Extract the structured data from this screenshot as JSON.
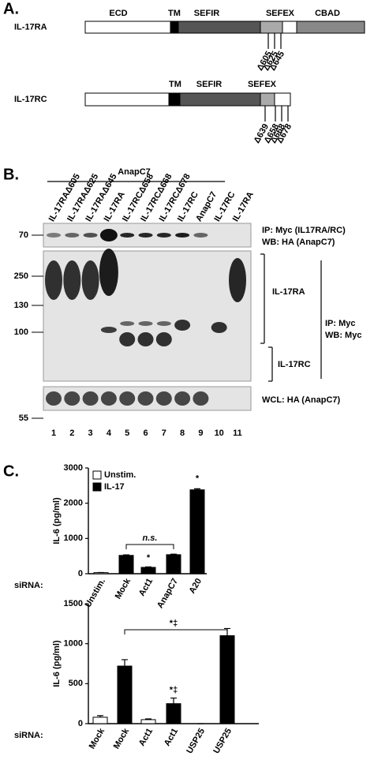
{
  "panel_a": {
    "label": "A.",
    "proteins": [
      {
        "name": "IL-17RA",
        "domains": [
          "ECD",
          "TM",
          "SEFIR",
          "SEFEX",
          "CBAD"
        ],
        "deletions": [
          "Δ605",
          "Δ625",
          "Δ645"
        ]
      },
      {
        "name": "IL-17RC",
        "domains": [
          "TM",
          "SEFIR",
          "SEFEX"
        ],
        "deletions": [
          "Δ639",
          "Δ658",
          "Δ668",
          "Δ678"
        ]
      }
    ]
  },
  "panel_b": {
    "label": "B.",
    "group": "AnapC7",
    "lanes": [
      "IL-17RAΔ605",
      "IL-17RAΔ625",
      "IL-17RAΔ645",
      "IL-17RA",
      "IL-17RCΔ658",
      "IL-17RCΔ668",
      "IL-17RCΔ678",
      "IL-17RC",
      "AnapC7",
      "IL-17RC",
      "IL-17RA"
    ],
    "lane_numbers": [
      1,
      2,
      3,
      4,
      5,
      6,
      7,
      8,
      9,
      10,
      11
    ],
    "blots": [
      {
        "markers": [
          70
        ],
        "caption": [
          "IP: Myc (IL17RA/RC)",
          "WB: HA (AnapC7)"
        ]
      },
      {
        "markers": [
          250,
          130,
          100
        ],
        "brackets": [
          "IL-17RA",
          "IL-17RC"
        ],
        "caption": [
          "IP: Myc",
          "WB: Myc"
        ]
      },
      {
        "markers": [
          55
        ],
        "caption": [
          "WCL: HA (AnapC7)"
        ]
      }
    ]
  },
  "panel_c": {
    "label": "C."
  },
  "chart_data": [
    {
      "type": "bar",
      "ylabel": "IL-6 (pg/ml)",
      "xlabel": "siRNA:",
      "categories": [
        "Unstim.",
        "Mock",
        "Act1",
        "AnapC7",
        "A20"
      ],
      "series": [
        {
          "name": "Unstim.",
          "color": "#ffffff",
          "values": [
            30,
            null,
            null,
            null,
            null
          ]
        },
        {
          "name": "IL-17",
          "color": "#000000",
          "values": [
            null,
            520,
            180,
            540,
            2380
          ]
        }
      ],
      "errors": [
        5,
        15,
        15,
        15,
        30
      ],
      "ylim": [
        0,
        3000
      ],
      "yticks": [
        0,
        1000,
        2000,
        3000
      ],
      "annotations": [
        "n.s.",
        "*",
        "*"
      ]
    },
    {
      "type": "bar",
      "ylabel": "IL-6 (pg/ml)",
      "xlabel": "siRNA:",
      "categories": [
        "Mock",
        "Mock",
        "Act1",
        "Act1",
        "USP25",
        "USP25"
      ],
      "values": [
        80,
        720,
        50,
        250,
        0,
        1100
      ],
      "errors": [
        20,
        80,
        10,
        70,
        0,
        90
      ],
      "colors": [
        "#ffffff",
        "#000000",
        "#ffffff",
        "#000000",
        "#ffffff",
        "#000000"
      ],
      "ylim": [
        0,
        1500
      ],
      "yticks": [
        0,
        500,
        1000,
        1500
      ],
      "annotations": [
        "*‡",
        "*‡"
      ]
    }
  ]
}
